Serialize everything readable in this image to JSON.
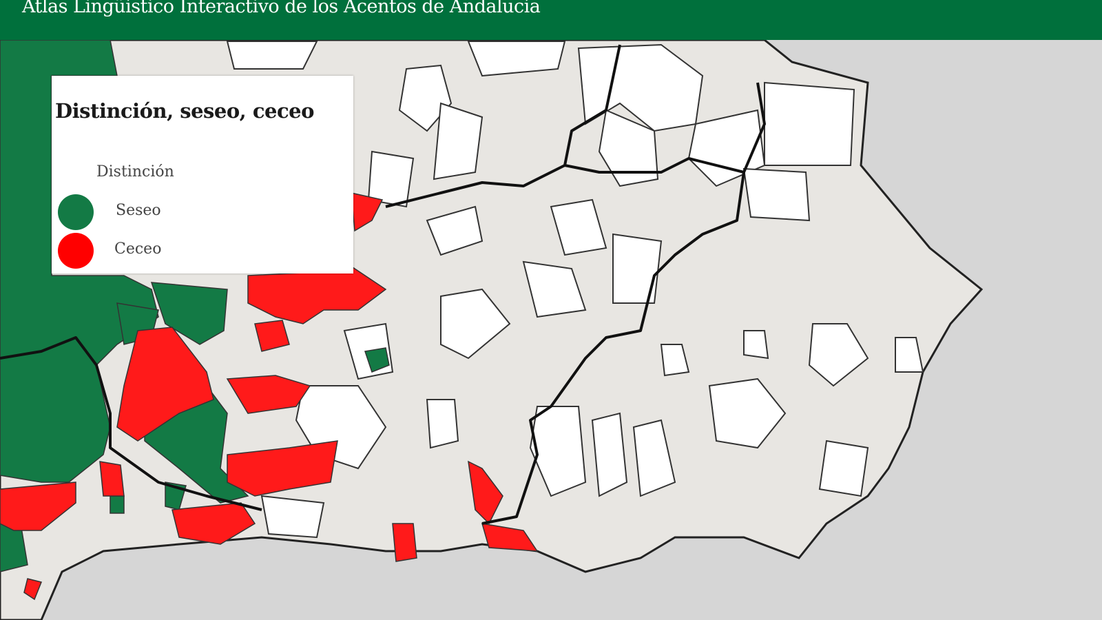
{
  "header": {
    "title": "Atlas Lingüístico Interactivo de los Acentos de Andalucía"
  },
  "legend": {
    "title": "Distinción, seseo, ceceo",
    "items": [
      {
        "label": "Distinción",
        "color": "#e8e6e2"
      },
      {
        "label": "Seseo",
        "color": "#137a45"
      },
      {
        "label": "Ceceo",
        "color": "#ff1a1a"
      }
    ]
  },
  "colors": {
    "header": "#00703c",
    "land": "#e8e6e2",
    "sea": "#d6d6d6",
    "unclassified": "#ffffff"
  }
}
